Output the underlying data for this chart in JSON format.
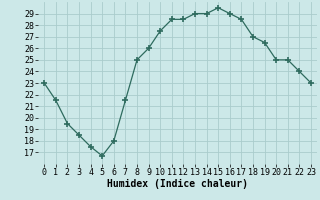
{
  "x": [
    0,
    1,
    2,
    3,
    4,
    5,
    6,
    7,
    8,
    9,
    10,
    11,
    12,
    13,
    14,
    15,
    16,
    17,
    18,
    19,
    20,
    21,
    22,
    23
  ],
  "y": [
    23.0,
    21.5,
    19.5,
    18.5,
    17.5,
    16.7,
    18.0,
    21.5,
    25.0,
    26.0,
    27.5,
    28.5,
    28.5,
    29.0,
    29.0,
    29.5,
    29.0,
    28.5,
    27.0,
    26.5,
    25.0,
    25.0,
    24.0,
    23.0
  ],
  "xlabel": "Humidex (Indice chaleur)",
  "xlim": [
    -0.5,
    23.5
  ],
  "ylim": [
    16.0,
    30.0
  ],
  "yticks": [
    17,
    18,
    19,
    20,
    21,
    22,
    23,
    24,
    25,
    26,
    27,
    28,
    29
  ],
  "xtick_labels": [
    "0",
    "1",
    "2",
    "3",
    "4",
    "5",
    "6",
    "7",
    "8",
    "9",
    "10",
    "11",
    "12",
    "13",
    "14",
    "15",
    "16",
    "17",
    "18",
    "19",
    "20",
    "21",
    "22",
    "23"
  ],
  "line_color": "#2e6b5e",
  "marker": "+",
  "bg_color": "#cce8e8",
  "grid_color": "#aacccc",
  "label_fontsize": 7,
  "tick_fontsize": 6
}
